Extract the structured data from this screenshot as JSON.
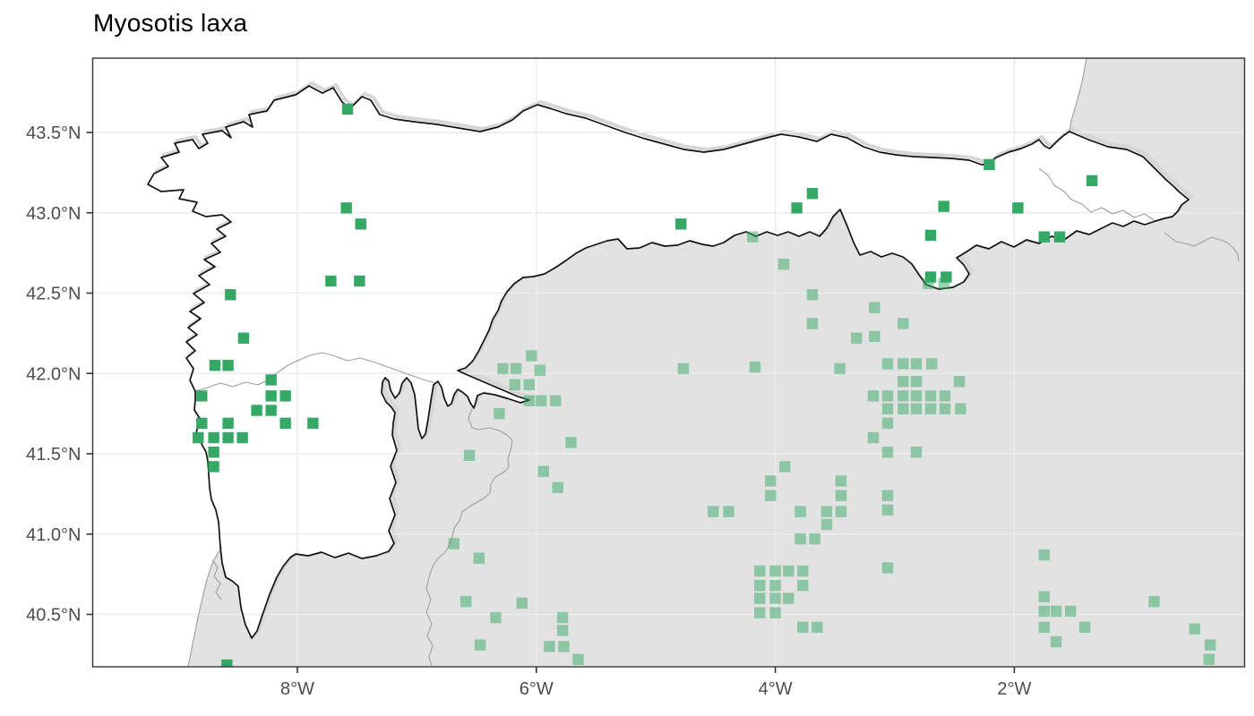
{
  "title": "Myosotis laxa",
  "panel": {
    "background": "#ffffff",
    "land_fill": "#e2e2e2",
    "grid_color": "#ececec",
    "border_color": "#333333",
    "region_outline_color": "#111111",
    "minor_border_color": "#9e9e9e",
    "coast_shadow_color": "#d6d6d6"
  },
  "axes": {
    "x_ticks": [
      {
        "label": "8°W",
        "lon": -8
      },
      {
        "label": "6°W",
        "lon": -6
      },
      {
        "label": "4°W",
        "lon": -4
      },
      {
        "label": "2°W",
        "lon": -2
      }
    ],
    "y_ticks": [
      {
        "label": "43.5°N",
        "lat": 43.5
      },
      {
        "label": "43.0°N",
        "lat": 43.0
      },
      {
        "label": "42.5°N",
        "lat": 42.5
      },
      {
        "label": "42.0°N",
        "lat": 42.0
      },
      {
        "label": "41.5°N",
        "lat": 41.5
      },
      {
        "label": "41.0°N",
        "lat": 41.0
      },
      {
        "label": "40.5°N",
        "lat": 40.5
      }
    ],
    "tick_color": "#333333",
    "label_color": "#4d4d4d"
  },
  "chart_data": {
    "type": "scatter",
    "subtype": "species-occurrence-map",
    "title": "Myosotis laxa",
    "xlabel": "",
    "ylabel": "",
    "x_range_lon": [
      -9.71,
      -0.05
    ],
    "y_range_lat": [
      40.15,
      43.96
    ],
    "grid": true,
    "legend": false,
    "marker": "filled-square",
    "marker_size_px": 12.4,
    "series": [
      {
        "name": "solid",
        "color": "#35a866",
        "opacity": 1.0,
        "points": [
          [
            -7.58,
            43.645
          ],
          [
            -7.59,
            43.03
          ],
          [
            -7.47,
            42.93
          ],
          [
            -7.72,
            42.575
          ],
          [
            -7.48,
            42.575
          ],
          [
            -8.56,
            42.49
          ],
          [
            -8.45,
            42.22
          ],
          [
            -8.69,
            42.05
          ],
          [
            -8.58,
            42.05
          ],
          [
            -8.22,
            41.96
          ],
          [
            -8.8,
            41.86
          ],
          [
            -8.22,
            41.86
          ],
          [
            -8.1,
            41.86
          ],
          [
            -8.34,
            41.77
          ],
          [
            -8.22,
            41.77
          ],
          [
            -8.8,
            41.69
          ],
          [
            -8.58,
            41.69
          ],
          [
            -8.1,
            41.69
          ],
          [
            -7.87,
            41.69
          ],
          [
            -8.83,
            41.6
          ],
          [
            -8.7,
            41.6
          ],
          [
            -8.58,
            41.6
          ],
          [
            -8.46,
            41.6
          ],
          [
            -8.7,
            41.51
          ],
          [
            -8.7,
            41.42
          ],
          [
            -3.69,
            43.12
          ],
          [
            -3.82,
            43.03
          ],
          [
            -4.79,
            42.93
          ],
          [
            -2.21,
            43.3
          ],
          [
            -1.35,
            43.2
          ],
          [
            -2.59,
            43.04
          ],
          [
            -1.97,
            43.03
          ],
          [
            -2.7,
            42.86
          ],
          [
            -1.75,
            42.85
          ],
          [
            -1.62,
            42.85
          ],
          [
            -2.7,
            42.6
          ],
          [
            -2.57,
            42.6
          ],
          [
            -8.59,
            40.185
          ]
        ]
      },
      {
        "name": "faded",
        "color": "#35a866",
        "opacity": 0.5,
        "points": [
          [
            -4.19,
            42.85
          ],
          [
            -3.93,
            42.68
          ],
          [
            -3.69,
            42.49
          ],
          [
            -3.17,
            42.41
          ],
          [
            -3.69,
            42.31
          ],
          [
            -2.93,
            42.31
          ],
          [
            -3.32,
            42.22
          ],
          [
            -3.17,
            42.23
          ],
          [
            -2.72,
            42.56
          ],
          [
            -2.59,
            42.56
          ],
          [
            -6.04,
            42.11
          ],
          [
            -6.28,
            42.03
          ],
          [
            -6.17,
            42.03
          ],
          [
            -5.97,
            42.02
          ],
          [
            -4.77,
            42.03
          ],
          [
            -4.17,
            42.04
          ],
          [
            -3.46,
            42.03
          ],
          [
            -3.06,
            42.06
          ],
          [
            -2.93,
            42.06
          ],
          [
            -2.82,
            42.06
          ],
          [
            -2.69,
            42.06
          ],
          [
            -6.18,
            41.93
          ],
          [
            -6.06,
            41.93
          ],
          [
            -2.93,
            41.95
          ],
          [
            -2.82,
            41.95
          ],
          [
            -2.46,
            41.95
          ],
          [
            -6.06,
            41.83
          ],
          [
            -5.96,
            41.83
          ],
          [
            -5.84,
            41.83
          ],
          [
            -3.18,
            41.86
          ],
          [
            -3.06,
            41.86
          ],
          [
            -2.93,
            41.86
          ],
          [
            -2.82,
            41.86
          ],
          [
            -2.7,
            41.86
          ],
          [
            -2.58,
            41.86
          ],
          [
            -3.06,
            41.78
          ],
          [
            -2.93,
            41.78
          ],
          [
            -2.82,
            41.78
          ],
          [
            -2.7,
            41.78
          ],
          [
            -2.58,
            41.78
          ],
          [
            -2.45,
            41.78
          ],
          [
            -6.31,
            41.75
          ],
          [
            -3.06,
            41.69
          ],
          [
            -3.18,
            41.6
          ],
          [
            -3.06,
            41.51
          ],
          [
            -2.82,
            41.51
          ],
          [
            -5.71,
            41.57
          ],
          [
            -6.56,
            41.49
          ],
          [
            -5.94,
            41.39
          ],
          [
            -3.92,
            41.42
          ],
          [
            -4.04,
            41.33
          ],
          [
            -3.45,
            41.33
          ],
          [
            -5.82,
            41.29
          ],
          [
            -4.04,
            41.24
          ],
          [
            -3.45,
            41.24
          ],
          [
            -3.06,
            41.24
          ],
          [
            -3.06,
            41.15
          ],
          [
            -4.52,
            41.14
          ],
          [
            -4.39,
            41.14
          ],
          [
            -3.79,
            41.14
          ],
          [
            -3.57,
            41.14
          ],
          [
            -3.45,
            41.14
          ],
          [
            -3.57,
            41.06
          ],
          [
            -3.79,
            40.97
          ],
          [
            -3.67,
            40.97
          ],
          [
            -6.69,
            40.94
          ],
          [
            -6.48,
            40.85
          ],
          [
            -3.06,
            40.79
          ],
          [
            -4.13,
            40.77
          ],
          [
            -4.0,
            40.77
          ],
          [
            -3.89,
            40.77
          ],
          [
            -3.77,
            40.77
          ],
          [
            -4.13,
            40.68
          ],
          [
            -4.0,
            40.68
          ],
          [
            -3.77,
            40.68
          ],
          [
            -4.13,
            40.6
          ],
          [
            -4.0,
            40.6
          ],
          [
            -3.89,
            40.6
          ],
          [
            -4.13,
            40.51
          ],
          [
            -4.0,
            40.51
          ],
          [
            -3.77,
            40.42
          ],
          [
            -3.65,
            40.42
          ],
          [
            -6.12,
            40.57
          ],
          [
            -6.34,
            40.48
          ],
          [
            -6.59,
            40.58
          ],
          [
            -6.47,
            40.31
          ],
          [
            -5.78,
            40.48
          ],
          [
            -5.78,
            40.4
          ],
          [
            -5.89,
            40.3
          ],
          [
            -5.77,
            40.3
          ],
          [
            -5.65,
            40.22
          ],
          [
            -1.75,
            40.87
          ],
          [
            -1.75,
            40.61
          ],
          [
            -1.75,
            40.52
          ],
          [
            -1.65,
            40.52
          ],
          [
            -1.53,
            40.52
          ],
          [
            -1.75,
            40.42
          ],
          [
            -1.41,
            40.42
          ],
          [
            -1.65,
            40.33
          ],
          [
            -0.83,
            40.58
          ],
          [
            -0.49,
            40.41
          ],
          [
            -0.36,
            40.31
          ],
          [
            -0.37,
            40.22
          ]
        ]
      }
    ]
  }
}
